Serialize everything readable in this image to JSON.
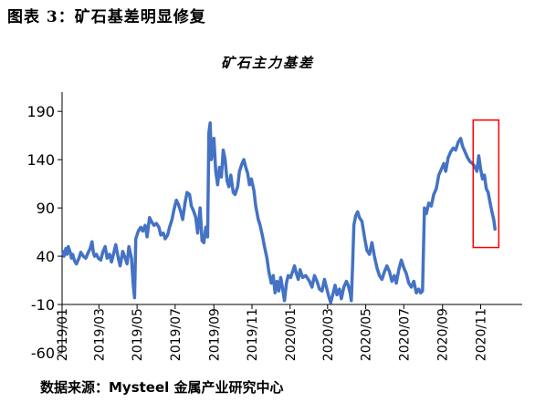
{
  "figure_label": "图表 3：矿石基差明显修复",
  "source": "数据来源：Mysteel 金属产业研究中心",
  "colors": {
    "series": "#4472C4",
    "highlight": "#FF0000",
    "axis": "#000000"
  },
  "chart_data": {
    "type": "line",
    "title": "矿石主力基差",
    "xlabel": "",
    "ylabel": "",
    "ylim": [
      -60,
      210
    ],
    "yticks": [
      -60,
      -10,
      40,
      90,
      140,
      190
    ],
    "ytick_labels": [
      "-60",
      "-10",
      "40",
      "90",
      "140",
      "190"
    ],
    "xlim": [
      "2019-01-01",
      "2020-12-01"
    ],
    "xticks": [
      "2019-01-01",
      "2019-03-01",
      "2019-05-01",
      "2019-07-01",
      "2019-09-01",
      "2019-11-01",
      "2020-01-01",
      "2020-03-01",
      "2020-05-01",
      "2020-07-01",
      "2020-09-01",
      "2020-11-01"
    ],
    "xtick_labels": [
      "2019/01",
      "2019/03",
      "2019/05",
      "2019/07",
      "2019/09",
      "2019/11",
      "2020/01",
      "2020/03",
      "2020/05",
      "2020/07",
      "2020/09",
      "2020/11"
    ],
    "grid": false,
    "legend": false,
    "highlight_range": {
      "x": [
        "2020-10-20",
        "2020-11-30"
      ],
      "y": [
        49,
        181
      ]
    },
    "series": [
      {
        "values": [
          [
            "2019-01-02",
            45
          ],
          [
            "2019-01-04",
            40
          ],
          [
            "2019-01-07",
            48
          ],
          [
            "2019-01-09",
            42
          ],
          [
            "2019-01-11",
            50
          ],
          [
            "2019-01-14",
            44
          ],
          [
            "2019-01-16",
            38
          ],
          [
            "2019-01-18",
            42
          ],
          [
            "2019-01-21",
            35
          ],
          [
            "2019-01-24",
            32
          ],
          [
            "2019-01-28",
            38
          ],
          [
            "2019-01-31",
            44
          ],
          [
            "2019-02-04",
            40
          ],
          [
            "2019-02-08",
            38
          ],
          [
            "2019-02-12",
            44
          ],
          [
            "2019-02-15",
            48
          ],
          [
            "2019-02-18",
            55
          ],
          [
            "2019-02-20",
            44
          ],
          [
            "2019-02-22",
            40
          ],
          [
            "2019-02-25",
            42
          ],
          [
            "2019-02-28",
            38
          ],
          [
            "2019-03-04",
            36
          ],
          [
            "2019-03-07",
            44
          ],
          [
            "2019-03-11",
            50
          ],
          [
            "2019-03-14",
            38
          ],
          [
            "2019-03-18",
            42
          ],
          [
            "2019-03-21",
            34
          ],
          [
            "2019-03-25",
            44
          ],
          [
            "2019-03-28",
            52
          ],
          [
            "2019-04-01",
            38
          ],
          [
            "2019-04-04",
            30
          ],
          [
            "2019-04-08",
            45
          ],
          [
            "2019-04-11",
            40
          ],
          [
            "2019-04-15",
            32
          ],
          [
            "2019-04-18",
            50
          ],
          [
            "2019-04-22",
            38
          ],
          [
            "2019-04-25",
            10
          ],
          [
            "2019-04-27",
            -3
          ],
          [
            "2019-04-29",
            58
          ],
          [
            "2019-05-03",
            66
          ],
          [
            "2019-05-07",
            70
          ],
          [
            "2019-05-10",
            66
          ],
          [
            "2019-05-14",
            72
          ],
          [
            "2019-05-17",
            60
          ],
          [
            "2019-05-21",
            80
          ],
          [
            "2019-05-24",
            76
          ],
          [
            "2019-05-28",
            72
          ],
          [
            "2019-06-01",
            74
          ],
          [
            "2019-06-05",
            70
          ],
          [
            "2019-06-08",
            62
          ],
          [
            "2019-06-12",
            64
          ],
          [
            "2019-06-15",
            58
          ],
          [
            "2019-06-19",
            62
          ],
          [
            "2019-06-22",
            70
          ],
          [
            "2019-06-26",
            78
          ],
          [
            "2019-06-29",
            88
          ],
          [
            "2019-07-03",
            98
          ],
          [
            "2019-07-06",
            94
          ],
          [
            "2019-07-10",
            86
          ],
          [
            "2019-07-13",
            78
          ],
          [
            "2019-07-17",
            96
          ],
          [
            "2019-07-20",
            106
          ],
          [
            "2019-07-24",
            104
          ],
          [
            "2019-07-27",
            92
          ],
          [
            "2019-07-31",
            86
          ],
          [
            "2019-08-03",
            80
          ],
          [
            "2019-08-06",
            64
          ],
          [
            "2019-08-08",
            78
          ],
          [
            "2019-08-10",
            90
          ],
          [
            "2019-08-13",
            56
          ],
          [
            "2019-08-16",
            54
          ],
          [
            "2019-08-19",
            70
          ],
          [
            "2019-08-22",
            60
          ],
          [
            "2019-08-24",
            168
          ],
          [
            "2019-08-26",
            178
          ],
          [
            "2019-08-28",
            140
          ],
          [
            "2019-09-01",
            162
          ],
          [
            "2019-09-04",
            128
          ],
          [
            "2019-09-07",
            114
          ],
          [
            "2019-09-10",
            132
          ],
          [
            "2019-09-13",
            122
          ],
          [
            "2019-09-16",
            150
          ],
          [
            "2019-09-19",
            140
          ],
          [
            "2019-09-22",
            118
          ],
          [
            "2019-09-25",
            112
          ],
          [
            "2019-09-28",
            124
          ],
          [
            "2019-10-02",
            106
          ],
          [
            "2019-10-05",
            104
          ],
          [
            "2019-10-09",
            112
          ],
          [
            "2019-10-12",
            128
          ],
          [
            "2019-10-16",
            136
          ],
          [
            "2019-10-19",
            140
          ],
          [
            "2019-10-22",
            132
          ],
          [
            "2019-10-25",
            126
          ],
          [
            "2019-10-28",
            114
          ],
          [
            "2019-10-31",
            120
          ],
          [
            "2019-11-04",
            108
          ],
          [
            "2019-11-07",
            92
          ],
          [
            "2019-11-11",
            78
          ],
          [
            "2019-11-14",
            72
          ],
          [
            "2019-11-18",
            60
          ],
          [
            "2019-11-21",
            50
          ],
          [
            "2019-11-25",
            38
          ],
          [
            "2019-11-28",
            24
          ],
          [
            "2019-12-02",
            12
          ],
          [
            "2019-12-05",
            20
          ],
          [
            "2019-12-08",
            2
          ],
          [
            "2019-12-11",
            14
          ],
          [
            "2019-12-14",
            4
          ],
          [
            "2019-12-17",
            18
          ],
          [
            "2019-12-20",
            6
          ],
          [
            "2019-12-23",
            -6
          ],
          [
            "2019-12-26",
            12
          ],
          [
            "2019-12-29",
            20
          ],
          [
            "2020-01-02",
            18
          ],
          [
            "2020-01-05",
            24
          ],
          [
            "2020-01-08",
            30
          ],
          [
            "2020-01-11",
            22
          ],
          [
            "2020-01-14",
            16
          ],
          [
            "2020-01-17",
            26
          ],
          [
            "2020-01-21",
            18
          ],
          [
            "2020-01-26",
            20
          ],
          [
            "2020-02-01",
            14
          ],
          [
            "2020-02-05",
            8
          ],
          [
            "2020-02-09",
            20
          ],
          [
            "2020-02-13",
            14
          ],
          [
            "2020-02-17",
            6
          ],
          [
            "2020-02-21",
            4
          ],
          [
            "2020-02-25",
            16
          ],
          [
            "2020-02-28",
            8
          ],
          [
            "2020-03-03",
            -2
          ],
          [
            "2020-03-06",
            -8
          ],
          [
            "2020-03-10",
            2
          ],
          [
            "2020-03-13",
            10
          ],
          [
            "2020-03-16",
            0
          ],
          [
            "2020-03-20",
            6
          ],
          [
            "2020-03-23",
            -4
          ],
          [
            "2020-03-27",
            8
          ],
          [
            "2020-03-31",
            14
          ],
          [
            "2020-04-03",
            10
          ],
          [
            "2020-04-06",
            2
          ],
          [
            "2020-04-08",
            -6
          ],
          [
            "2020-04-10",
            30
          ],
          [
            "2020-04-12",
            72
          ],
          [
            "2020-04-15",
            82
          ],
          [
            "2020-04-18",
            86
          ],
          [
            "2020-04-21",
            80
          ],
          [
            "2020-04-25",
            76
          ],
          [
            "2020-04-29",
            60
          ],
          [
            "2020-05-03",
            46
          ],
          [
            "2020-05-07",
            42
          ],
          [
            "2020-05-11",
            54
          ],
          [
            "2020-05-15",
            40
          ],
          [
            "2020-05-19",
            28
          ],
          [
            "2020-05-23",
            20
          ],
          [
            "2020-05-27",
            16
          ],
          [
            "2020-05-31",
            24
          ],
          [
            "2020-06-04",
            30
          ],
          [
            "2020-06-08",
            24
          ],
          [
            "2020-06-12",
            14
          ],
          [
            "2020-06-16",
            20
          ],
          [
            "2020-06-19",
            12
          ],
          [
            "2020-06-23",
            26
          ],
          [
            "2020-06-27",
            36
          ],
          [
            "2020-07-01",
            28
          ],
          [
            "2020-07-05",
            22
          ],
          [
            "2020-07-09",
            12
          ],
          [
            "2020-07-13",
            8
          ],
          [
            "2020-07-17",
            14
          ],
          [
            "2020-07-21",
            2
          ],
          [
            "2020-07-25",
            6
          ],
          [
            "2020-07-28",
            2
          ],
          [
            "2020-07-31",
            4
          ],
          [
            "2020-08-03",
            90
          ],
          [
            "2020-08-06",
            84
          ],
          [
            "2020-08-10",
            95
          ],
          [
            "2020-08-14",
            92
          ],
          [
            "2020-08-18",
            104
          ],
          [
            "2020-08-22",
            110
          ],
          [
            "2020-08-26",
            124
          ],
          [
            "2020-08-30",
            130
          ],
          [
            "2020-09-03",
            136
          ],
          [
            "2020-09-06",
            128
          ],
          [
            "2020-09-10",
            142
          ],
          [
            "2020-09-14",
            148
          ],
          [
            "2020-09-18",
            152
          ],
          [
            "2020-09-22",
            150
          ],
          [
            "2020-09-26",
            158
          ],
          [
            "2020-09-30",
            162
          ],
          [
            "2020-10-03",
            154
          ],
          [
            "2020-10-07",
            148
          ],
          [
            "2020-10-11",
            142
          ],
          [
            "2020-10-15",
            138
          ],
          [
            "2020-10-19",
            136
          ],
          [
            "2020-10-23",
            132
          ],
          [
            "2020-10-26",
            128
          ],
          [
            "2020-10-29",
            144
          ],
          [
            "2020-11-01",
            130
          ],
          [
            "2020-11-04",
            120
          ],
          [
            "2020-11-07",
            124
          ],
          [
            "2020-11-10",
            110
          ],
          [
            "2020-11-13",
            106
          ],
          [
            "2020-11-16",
            96
          ],
          [
            "2020-11-19",
            86
          ],
          [
            "2020-11-22",
            78
          ],
          [
            "2020-11-24",
            68
          ]
        ]
      }
    ]
  }
}
